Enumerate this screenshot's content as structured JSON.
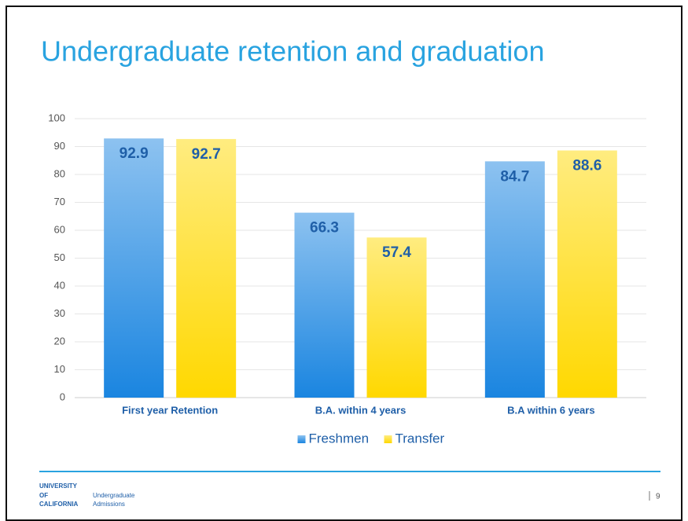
{
  "chart_data": {
    "type": "bar",
    "title": "Undergraduate retention and graduation",
    "categories": [
      "First year Retention",
      "B.A. within 4 years",
      "B.A within 6 years"
    ],
    "series": [
      {
        "name": "Freshmen",
        "color": "#1a85e0",
        "values": [
          92.9,
          66.3,
          84.7
        ]
      },
      {
        "name": "Transfer",
        "color": "#ffd800",
        "values": [
          92.7,
          57.4,
          88.6
        ]
      }
    ],
    "ylim": [
      0,
      100
    ],
    "yticks": [
      0,
      10,
      20,
      30,
      40,
      50,
      60,
      70,
      80,
      90,
      100
    ],
    "grid": true,
    "legend": "bottom"
  },
  "footer": {
    "logo": [
      "UNIVERSITY",
      "OF",
      "CALIFORNIA"
    ],
    "department": [
      "Undergraduate",
      "Admissions"
    ],
    "page": "9"
  }
}
